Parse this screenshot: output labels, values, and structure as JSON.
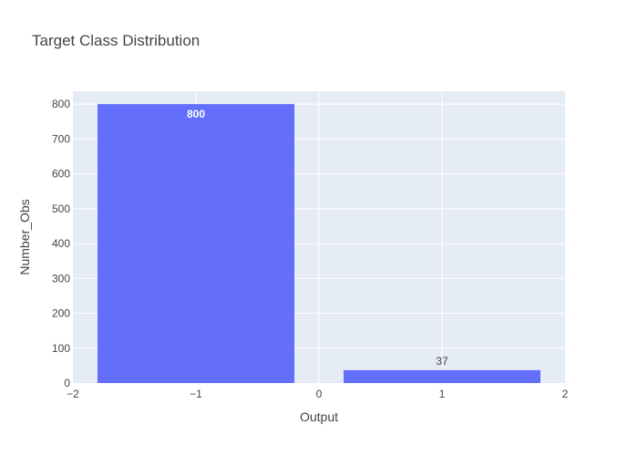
{
  "chart_data": {
    "type": "bar",
    "title": "Target Class Distribution",
    "xlabel": "Output",
    "ylabel": "Number_Obs",
    "x": [
      -1,
      1
    ],
    "values": [
      800,
      37
    ],
    "data_labels": [
      "800",
      "37"
    ],
    "xlim": [
      -2,
      2
    ],
    "ylim": [
      0,
      837
    ],
    "x_ticks": [
      -2,
      -1,
      0,
      1,
      2
    ],
    "x_tick_labels": [
      "−2",
      "−1",
      "0",
      "1",
      "2"
    ],
    "y_ticks": [
      0,
      100,
      200,
      300,
      400,
      500,
      600,
      700,
      800
    ],
    "y_tick_labels": [
      "0",
      "100",
      "200",
      "300",
      "400",
      "500",
      "600",
      "700",
      "800"
    ],
    "grid": true,
    "bar_color": "#636efa",
    "plot_bg": "#e5ecf6",
    "label_colors": {
      "inside": "#ffffff",
      "outside": "#444444"
    }
  }
}
